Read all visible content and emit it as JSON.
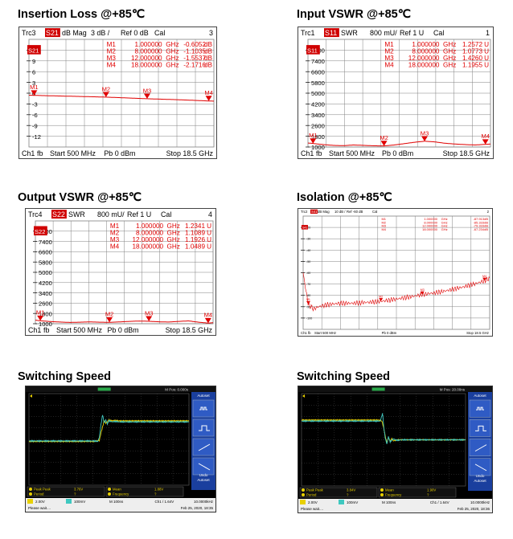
{
  "colors": {
    "trace": "#e00000",
    "ch_tag": "#d00000",
    "grid": "#808080",
    "scope_ch1": "#e8d000",
    "scope_ch2": "#3fc8c0",
    "scope_panel": "#1a3f9e"
  },
  "titles": {
    "p1": "Insertion Loss @+85℃",
    "p2": "Input VSWR @+85℃",
    "p3": "Output VSWR @+85℃",
    "p4": "Isolation @+85℃",
    "p5": "Switching Speed",
    "p6": "Switching Speed"
  },
  "chart_data": [
    {
      "id": "il",
      "type": "line",
      "header": {
        "trc": "Trc3",
        "param": "S21",
        "format": "dB Mag",
        "scale": "3 dB /",
        "ref": "Ref 0 dB",
        "cal": "Cal",
        "ch": "3"
      },
      "footer": {
        "ch": "Ch1",
        "fb": "fb",
        "start": "Start  500 MHz",
        "pb": "Pb  0 dBm",
        "stop": "Stop  18.5 GHz"
      },
      "xlim": [
        0.5,
        18.5
      ],
      "ylim": [
        -15,
        15
      ],
      "yticks": [
        12,
        9,
        6,
        3,
        0,
        -3,
        -6,
        -9,
        -12
      ],
      "ytick_labels": [
        "12",
        "9",
        "6",
        "3",
        "0",
        "-3",
        "-6",
        "-9",
        "-12"
      ],
      "ref_value": 12,
      "ref_label": "S21",
      "markers": [
        {
          "name": "M1",
          "freq": "1.000000",
          "unit": "GHz",
          "value": "-0.6052",
          "vunit": "dB",
          "x": 1.0,
          "y": -0.61
        },
        {
          "name": "M2",
          "freq": "8.000000",
          "unit": "GHz",
          "value": "-1.1035",
          "vunit": "dB",
          "x": 8.0,
          "y": -1.1
        },
        {
          "name": "M3",
          "freq": "12.000000",
          "unit": "GHz",
          "value": "-1.5537",
          "vunit": "dB",
          "x": 12.0,
          "y": -1.55
        },
        {
          "name": "M4",
          "freq": "18.000000",
          "unit": "GHz",
          "value": "-2.1716",
          "vunit": "dB",
          "x": 18.0,
          "y": -2.17
        }
      ],
      "trace": {
        "x": [
          0.5,
          1,
          2,
          3,
          4,
          5,
          6,
          7,
          8,
          9,
          10,
          11,
          12,
          13,
          14,
          15,
          16,
          17,
          18,
          18.5
        ],
        "y": [
          -0.55,
          -0.61,
          -0.68,
          -0.75,
          -0.82,
          -0.88,
          -0.95,
          -1.02,
          -1.1,
          -1.21,
          -1.32,
          -1.44,
          -1.55,
          -1.64,
          -1.73,
          -1.82,
          -1.93,
          -2.05,
          -2.17,
          -2.22
        ]
      }
    },
    {
      "id": "ivswr",
      "type": "line",
      "header": {
        "trc": "Trc1",
        "param": "S11",
        "format": "SWR",
        "scale": "800 mU/",
        "ref": "Ref 1 U",
        "cal": "Cal",
        "ch": "1"
      },
      "footer": {
        "ch": "Ch1",
        "fb": "fb",
        "start": "Start  500 MHz",
        "pb": "Pb  0 dBm",
        "stop": "Stop  18.5 GHz"
      },
      "xlim": [
        0.5,
        18.5
      ],
      "ylim": [
        1,
        9
      ],
      "yticks": [
        8.2,
        7.4,
        6.6,
        5.8,
        5.0,
        4.2,
        3.4,
        2.6,
        1.8,
        1.0
      ],
      "ytick_labels": [
        "8200",
        "7400",
        "6600",
        "5800",
        "5000",
        "4200",
        "3400",
        "2600",
        "1800",
        "1000"
      ],
      "ref_value": 8.2,
      "ref_label": "S11",
      "markers": [
        {
          "name": "M1",
          "freq": "1.000000",
          "unit": "GHz",
          "value": "1.2572",
          "vunit": "U",
          "x": 1.0,
          "y": 1.257
        },
        {
          "name": "M2",
          "freq": "8.000000",
          "unit": "GHz",
          "value": "1.0773",
          "vunit": "U",
          "x": 8.0,
          "y": 1.077
        },
        {
          "name": "M3",
          "freq": "12.000000",
          "unit": "GHz",
          "value": "1.4260",
          "vunit": "U",
          "x": 12.0,
          "y": 1.426
        },
        {
          "name": "M4",
          "freq": "18.000000",
          "unit": "GHz",
          "value": "1.1955",
          "vunit": "U",
          "x": 18.0,
          "y": 1.196
        }
      ],
      "trace": {
        "x": [
          0.5,
          1,
          2,
          3,
          4,
          5,
          6,
          7,
          8,
          9,
          10,
          11,
          12,
          13,
          14,
          15,
          16,
          17,
          18,
          18.5
        ],
        "y": [
          1.3,
          1.26,
          1.18,
          1.12,
          1.1,
          1.15,
          1.12,
          1.09,
          1.08,
          1.15,
          1.25,
          1.35,
          1.43,
          1.38,
          1.28,
          1.22,
          1.18,
          1.15,
          1.2,
          1.22
        ]
      }
    },
    {
      "id": "ovswr",
      "type": "line",
      "header": {
        "trc": "Trc4",
        "param": "S22",
        "format": "SWR",
        "scale": "800 mU/",
        "ref": "Ref 1 U",
        "cal": "Cal",
        "ch": "4"
      },
      "footer": {
        "ch": "Ch1",
        "fb": "fb",
        "start": "Start  500 MHz",
        "pb": "Pb  0 dBm",
        "stop": "Stop  18.5 GHz"
      },
      "xlim": [
        0.5,
        18.5
      ],
      "ylim": [
        1,
        9
      ],
      "yticks": [
        8.2,
        7.4,
        6.6,
        5.8,
        5.0,
        4.2,
        3.4,
        2.6,
        1.8,
        1.0
      ],
      "ytick_labels": [
        "8200",
        "7400",
        "6600",
        "5800",
        "5000",
        "4200",
        "3400",
        "2600",
        "1800",
        "1000"
      ],
      "ref_value": 8.2,
      "ref_label": "S22",
      "markers": [
        {
          "name": "M1",
          "freq": "1.000000",
          "unit": "GHz",
          "value": "1.2341",
          "vunit": "U",
          "x": 1.0,
          "y": 1.234
        },
        {
          "name": "M2",
          "freq": "8.000000",
          "unit": "GHz",
          "value": "1.1089",
          "vunit": "U",
          "x": 8.0,
          "y": 1.109
        },
        {
          "name": "M3",
          "freq": "12.000000",
          "unit": "GHz",
          "value": "1.1926",
          "vunit": "U",
          "x": 12.0,
          "y": 1.193
        },
        {
          "name": "M4",
          "freq": "18.000000",
          "unit": "GHz",
          "value": "1.0489",
          "vunit": "U",
          "x": 18.0,
          "y": 1.049
        }
      ],
      "trace": {
        "x": [
          0.5,
          1,
          2,
          3,
          4,
          5,
          6,
          7,
          8,
          9,
          10,
          11,
          12,
          13,
          14,
          15,
          16,
          17,
          18,
          18.5
        ],
        "y": [
          1.28,
          1.23,
          1.17,
          1.13,
          1.1,
          1.12,
          1.14,
          1.12,
          1.11,
          1.14,
          1.18,
          1.21,
          1.19,
          1.15,
          1.13,
          1.18,
          1.22,
          1.12,
          1.05,
          1.08
        ]
      }
    },
    {
      "id": "iso",
      "type": "line",
      "header": {
        "trc": "Trc2",
        "param": "S41",
        "format": "dB Mag",
        "scale": "10 dB /",
        "ref": "Ref -60 dB",
        "cal": "Cal",
        "ch": "2"
      },
      "footer": {
        "ch": "Ch1",
        "fb": "fb",
        "start": "Start  500 MHz",
        "pb": "Pb  0 dBm",
        "stop": "Stop  18.5 GHz"
      },
      "xlim": [
        0.5,
        18.5
      ],
      "ylim": [
        -110,
        -10
      ],
      "yticks": [
        -20,
        -30,
        -40,
        -50,
        -60,
        -70,
        -80,
        -90,
        -100
      ],
      "ytick_labels": [
        "-20",
        "-30",
        "-40",
        "-50",
        "-60",
        "-70",
        "-80",
        "-90",
        "-100"
      ],
      "ref_value": -20,
      "ref_label": "S41",
      "markers": [
        {
          "name": "M1",
          "freq": "1.000000",
          "unit": "GHz",
          "value": "-87.913",
          "vunit": "dB",
          "x": 1.0,
          "y": -87.9
        },
        {
          "name": "M2",
          "freq": "8.000000",
          "unit": "GHz",
          "value": "-85.333",
          "vunit": "dB",
          "x": 8.0,
          "y": -85.3
        },
        {
          "name": "M3",
          "freq": "12.000000",
          "unit": "GHz",
          "value": "-79.333",
          "vunit": "dB",
          "x": 12.0,
          "y": -79.3
        },
        {
          "name": "M4",
          "freq": "18.000000",
          "unit": "GHz",
          "value": "-67.234",
          "vunit": "dB",
          "x": 18.0,
          "y": -67.2
        }
      ],
      "trace": {
        "x": [
          0.5,
          0.7,
          1,
          1.5,
          2,
          3,
          4,
          5,
          6,
          7,
          8,
          9,
          10,
          11,
          12,
          13,
          14,
          15,
          16,
          17,
          18,
          18.5
        ],
        "y": [
          -60,
          -72,
          -87.9,
          -92,
          -90,
          -88,
          -87,
          -87,
          -86.5,
          -86,
          -85.3,
          -84,
          -82.5,
          -81,
          -79.3,
          -78,
          -76.5,
          -74.5,
          -72.5,
          -70,
          -67.2,
          -65
        ]
      }
    },
    {
      "id": "sw1",
      "type": "line",
      "time_div": "M 100ns",
      "header": {
        "pos": "M Pos: 0.000s",
        "panel": "Autoset"
      },
      "bottom": {
        "ch1": "2.00V",
        "ch2": "100mV",
        "tb": "M 100ns",
        "trig": "Ch1 / 1.64V",
        "freq": "10.0000kHz",
        "wait": "Please wait....",
        "date": "Feb 25, 2020, 18:35"
      },
      "meas": {
        "pkpk_label": "Peak Peak",
        "pkpk": "3.76V",
        "period_label": "Period",
        "period": "?",
        "mean_label": "Mean",
        "mean": "1.88V",
        "freq_label": "Frequency",
        "freq": "?"
      },
      "undo": [
        "Undo",
        "Autoset"
      ],
      "edge": "rising",
      "series": [
        {
          "channel": 1,
          "x": [
            -500,
            -90,
            -60,
            -50,
            -40,
            -30,
            -20,
            -10,
            0,
            20,
            40,
            60,
            100,
            500
          ],
          "y": [
            -0.2,
            -0.2,
            -0.1,
            0.6,
            1.2,
            1.8,
            1.6,
            1.7,
            1.9,
            1.8,
            1.85,
            1.8,
            1.8,
            1.8
          ]
        },
        {
          "channel": 2,
          "x": [
            -500,
            -90,
            -70,
            -60,
            -50,
            -40,
            -30,
            -20,
            -10,
            0,
            20,
            40,
            60,
            100,
            500
          ],
          "y": [
            -0.15,
            -0.15,
            -0.2,
            0.2,
            1.4,
            2.4,
            1.6,
            1.9,
            1.5,
            1.8,
            1.7,
            1.75,
            1.7,
            1.7,
            1.7
          ]
        }
      ]
    },
    {
      "id": "sw2",
      "type": "line",
      "time_div": "M 100ns",
      "header": {
        "pos": "M Pos: 20.00ns",
        "panel": "Autoset"
      },
      "bottom": {
        "ch1": "2.00V",
        "ch2": "100mV",
        "tb": "M 100ns",
        "trig": "Ch1 / 1.64V",
        "freq": "10.0000kHz",
        "wait": "Please wait....",
        "date": "Feb 25, 2020, 18:36"
      },
      "meas": {
        "pkpk_label": "Peak Peak",
        "pkpk": "3.84V",
        "period_label": "Period",
        "period": "?",
        "mean_label": "Mean",
        "mean": "1.90V",
        "freq_label": "Frequency",
        "freq": "?"
      },
      "undo": [
        "Undo",
        "Autoset"
      ],
      "edge": "falling",
      "series": [
        {
          "channel": 1,
          "x": [
            -500,
            -30,
            -10,
            0,
            10,
            20,
            30,
            40,
            50,
            60,
            80,
            120,
            500
          ],
          "y": [
            1.9,
            1.9,
            1.8,
            1.2,
            0.4,
            -0.3,
            0.2,
            -0.1,
            0.1,
            -0.1,
            0,
            0,
            0
          ]
        },
        {
          "channel": 2,
          "x": [
            -500,
            -20,
            -5,
            0,
            10,
            20,
            30,
            40,
            60,
            80,
            120,
            500
          ],
          "y": [
            1.8,
            1.8,
            2.6,
            1.4,
            0.2,
            -0.4,
            0.3,
            -0.2,
            0.1,
            -0.05,
            0,
            0
          ]
        }
      ]
    }
  ]
}
